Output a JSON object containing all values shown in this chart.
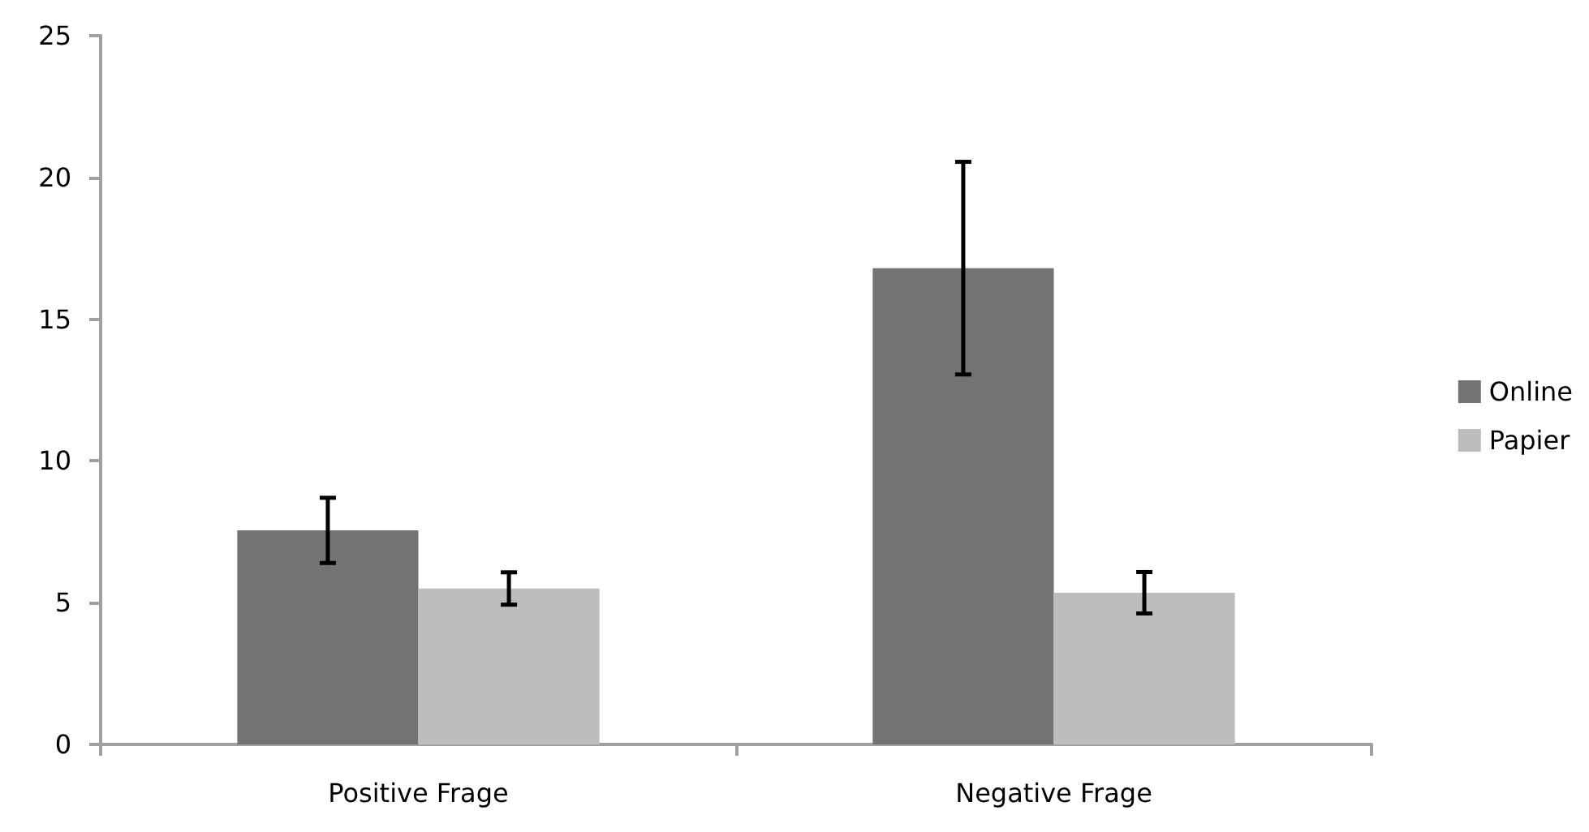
{
  "chart_data": {
    "type": "bar",
    "categories": [
      "Positive Frage",
      "Negative Frage"
    ],
    "series": [
      {
        "name": "Online",
        "color": "#737373",
        "values": [
          7.55,
          16.8
        ],
        "errors": [
          1.15,
          3.75
        ]
      },
      {
        "name": "Papier",
        "color": "#bdbdbd",
        "values": [
          5.5,
          5.35
        ],
        "errors": [
          0.57,
          0.73
        ]
      }
    ],
    "ylim": [
      0,
      25
    ],
    "yticks": [
      0,
      5,
      10,
      15,
      20,
      25
    ],
    "grid": false,
    "legend": "right"
  }
}
